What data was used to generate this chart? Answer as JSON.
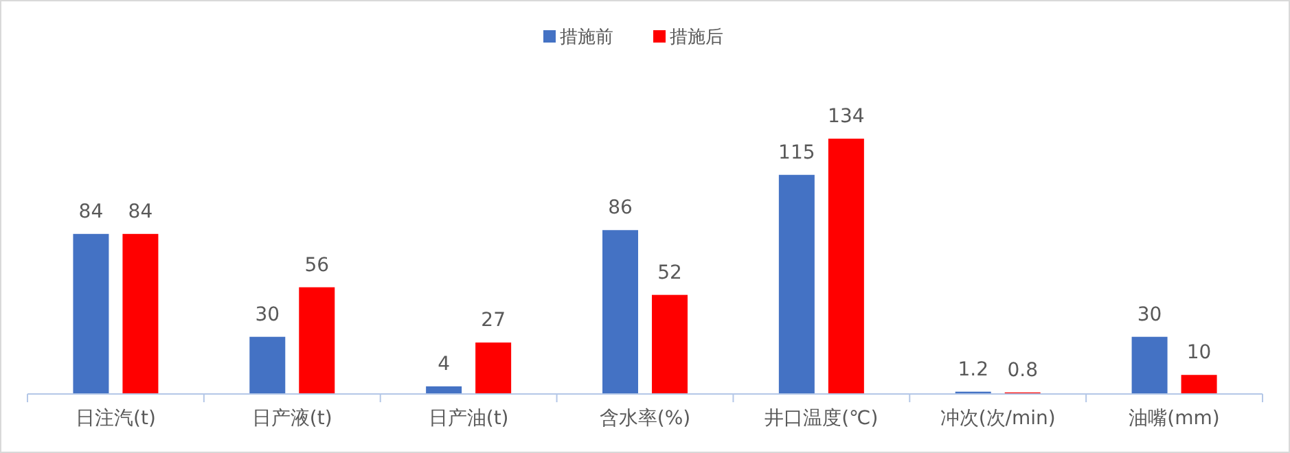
{
  "chart_data": {
    "type": "bar",
    "categories": [
      "日注汽(t)",
      "日产液(t)",
      "日产油(t)",
      "含水率(%)",
      "井口温度(℃)",
      "冲次(次/min)",
      "油嘴(mm)"
    ],
    "series": [
      {
        "name": "措施前",
        "color": "#4472c4",
        "values": [
          84,
          30,
          4,
          86,
          115,
          1.2,
          30
        ]
      },
      {
        "name": "措施后",
        "color": "#ff0000",
        "values": [
          84,
          56,
          27,
          52,
          134,
          0.8,
          10
        ]
      }
    ],
    "data_labels": true,
    "legend": "top"
  }
}
